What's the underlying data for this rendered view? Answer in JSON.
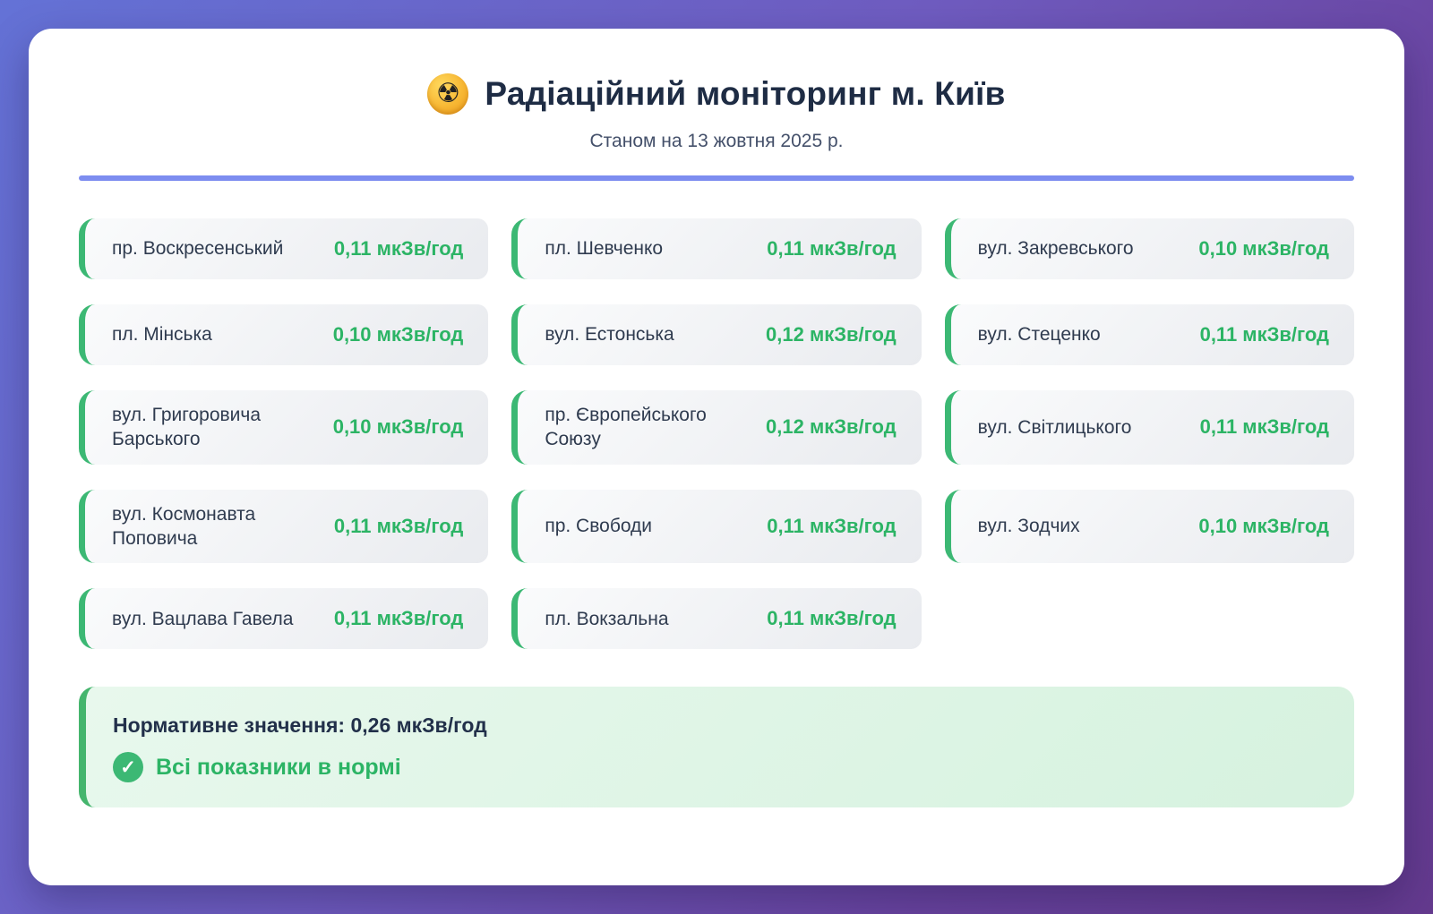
{
  "header": {
    "icon": "radioactive-icon",
    "icon_glyph": "☢",
    "title": "Радіаційний моніторинг м. Київ",
    "subtitle": "Станом на 13 жовтня 2025 р."
  },
  "stations": [
    {
      "name": "пр. Воскресенський",
      "value": "0,11 мкЗв/год"
    },
    {
      "name": "пл. Шевченко",
      "value": "0,11 мкЗв/год"
    },
    {
      "name": "вул. Закревського",
      "value": "0,10 мкЗв/год"
    },
    {
      "name": "пл. Мінська",
      "value": "0,10 мкЗв/год"
    },
    {
      "name": "вул. Естонська",
      "value": "0,12 мкЗв/год"
    },
    {
      "name": "вул. Стеценко",
      "value": "0,11 мкЗв/год"
    },
    {
      "name": "вул. Григоровича Барського",
      "value": "0,10 мкЗв/год"
    },
    {
      "name": "пр. Європейського Союзу",
      "value": "0,12 мкЗв/год"
    },
    {
      "name": "вул. Світлицького",
      "value": "0,11 мкЗв/год"
    },
    {
      "name": "вул. Космонавта Поповича",
      "value": "0,11 мкЗв/год"
    },
    {
      "name": "пр. Свободи",
      "value": "0,11 мкЗв/год"
    },
    {
      "name": "вул. Зодчих",
      "value": "0,10 мкЗв/год"
    },
    {
      "name": "вул. Вацлава Гавела",
      "value": "0,11 мкЗв/год"
    },
    {
      "name": "пл. Вокзальна",
      "value": "0,11 мкЗв/год"
    }
  ],
  "summary": {
    "norm_text": "Нормативне значення: 0,26 мкЗв/год",
    "check_icon": "check-icon",
    "check_glyph": "✓",
    "status_text": "Всі показники в нормі"
  },
  "colors": {
    "accent_green": "#3cb874",
    "value_green": "#2cb465",
    "divider_blue": "#7d8df0",
    "title_navy": "#1e2c44",
    "notice_bg": "#e0f5e7",
    "bg_gradient_start": "#6472d6",
    "bg_gradient_end": "#643a8e"
  }
}
